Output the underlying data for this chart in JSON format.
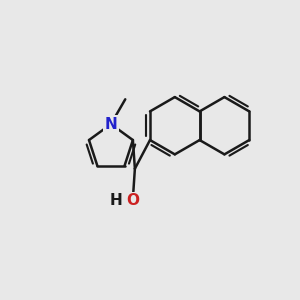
{
  "background_color": "#e8e8e8",
  "bond_color": "#1a1a1a",
  "N_color": "#2222cc",
  "O_color": "#cc2222",
  "bond_width": 1.8,
  "figsize": [
    3.0,
    3.0
  ],
  "dpi": 100,
  "xlim": [
    -3.2,
    4.2
  ],
  "ylim": [
    -2.8,
    2.8
  ]
}
